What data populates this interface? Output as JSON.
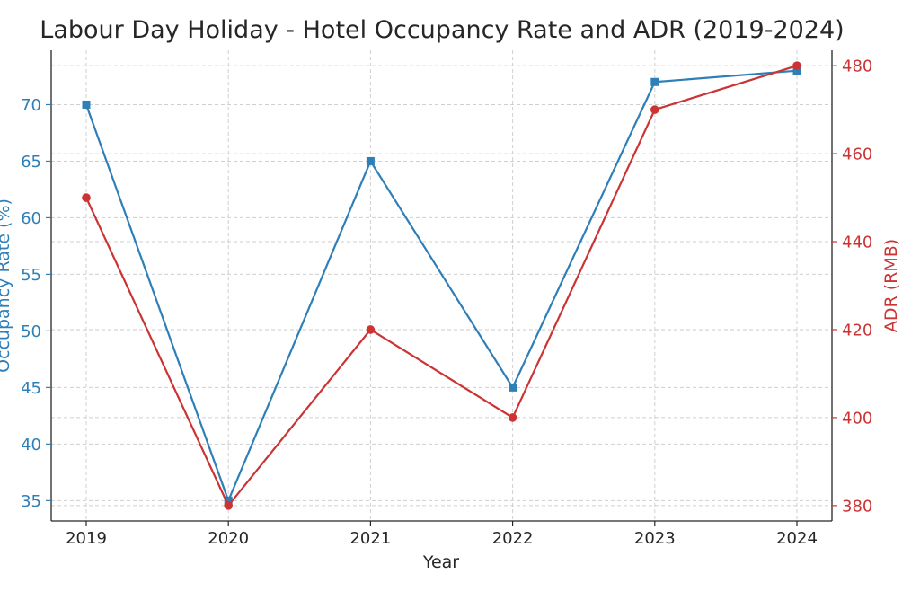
{
  "chart_data": {
    "type": "line",
    "title": "Labour Day Holiday - Hotel Occupancy Rate and ADR (2019-2024)",
    "xlabel": "Year",
    "categories": [
      "2019",
      "2020",
      "2021",
      "2022",
      "2023",
      "2024"
    ],
    "grid": true,
    "series": [
      {
        "name": "Occupancy Rate (%)",
        "axis": "left",
        "marker": "square",
        "color": "#2e7fb8",
        "values": [
          70,
          35,
          65,
          45,
          72,
          73
        ]
      },
      {
        "name": "ADR (RMB)",
        "axis": "right",
        "marker": "circle",
        "color": "#cc3333",
        "values": [
          450,
          380,
          420,
          400,
          470,
          480
        ]
      }
    ],
    "y_left": {
      "label": "Occupancy Rate (%)",
      "ticks": [
        35,
        40,
        45,
        50,
        55,
        60,
        65,
        70
      ],
      "ylim": [
        33.2,
        74.8
      ],
      "color": "#2e7fb8"
    },
    "y_right": {
      "label": "ADR (RMB)",
      "ticks": [
        380,
        400,
        420,
        440,
        460,
        480
      ],
      "ylim": [
        376.5,
        483.5
      ],
      "color": "#cc3333"
    }
  }
}
